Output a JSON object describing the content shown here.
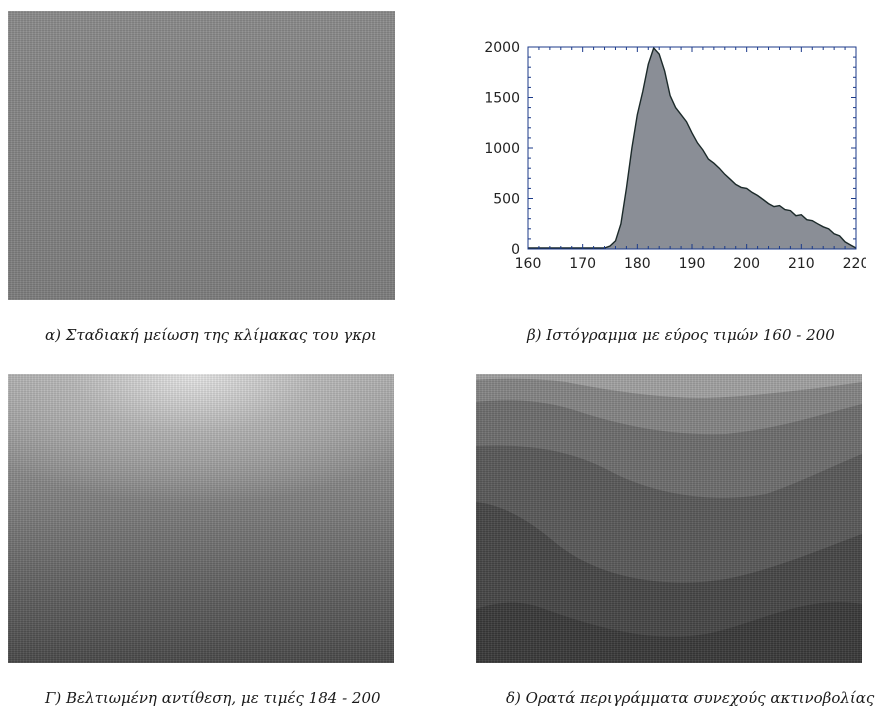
{
  "captions": {
    "a": "α) Σταδιακή μείωση της κλίμακας του γκρι",
    "b": "β) Ιστόγραμμα με εύρος τιμών 160 - 200",
    "c": "Γ) Βελτιωμένη αντίθεση, με τιμές 184 - 200",
    "d": "δ) Ορατά περιγράμματα συνεχούς ακτινοβολίας"
  },
  "colors": {
    "fill": "#8a8e96",
    "line": "#1c2a2a",
    "axis": "#1b3a8a"
  },
  "chart_data": {
    "type": "area",
    "title": "",
    "xlabel": "",
    "ylabel": "",
    "xlim": [
      160,
      220
    ],
    "ylim": [
      0,
      2000
    ],
    "x_ticks": [
      160,
      170,
      180,
      190,
      200,
      210,
      220
    ],
    "y_ticks": [
      0,
      500,
      1000,
      1500,
      2000
    ],
    "grid": false,
    "series": [
      {
        "x": [
          160,
          174,
          175,
          176,
          177,
          178,
          179,
          180,
          181,
          182,
          183,
          184,
          185,
          186,
          187,
          188,
          189,
          190,
          191,
          192,
          193,
          194,
          195,
          196,
          197,
          198,
          199,
          200,
          201,
          202,
          203,
          204,
          205,
          206,
          207,
          208,
          209,
          210,
          211,
          212,
          213,
          214,
          215,
          216,
          217,
          218,
          219,
          220
        ],
        "y": [
          10,
          10,
          30,
          80,
          250,
          600,
          1000,
          1330,
          1560,
          1830,
          1990,
          1930,
          1760,
          1520,
          1400,
          1330,
          1260,
          1150,
          1050,
          980,
          890,
          850,
          800,
          740,
          690,
          640,
          610,
          600,
          560,
          530,
          490,
          450,
          420,
          430,
          390,
          380,
          330,
          340,
          290,
          280,
          250,
          220,
          200,
          150,
          130,
          70,
          40,
          10
        ]
      }
    ]
  }
}
